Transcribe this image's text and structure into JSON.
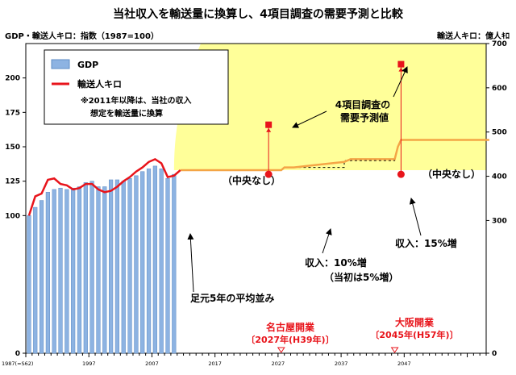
{
  "chart_data": {
    "type": "bar",
    "title": "当社収入を輸送量に換算し、4項目調査の需要予測と比較",
    "left_axis_label": "GDP・輸送人キロ：指数（1987=100）",
    "right_axis_label": "輸送人キロ：億人ｷﾛ",
    "y_left": {
      "range": [
        0,
        225
      ],
      "ticks": [
        "0",
        "100",
        "125",
        "150",
        "175",
        "200"
      ]
    },
    "y_right": {
      "range": [
        0,
        700
      ],
      "ticks": [
        "0",
        "300",
        "400",
        "500",
        "600",
        "700"
      ]
    },
    "x": {
      "range": [
        1987,
        2060
      ],
      "tick_labels": [
        {
          "year": 1987,
          "label": "1987(=S62)"
        },
        {
          "year": 1997,
          "label": "1997"
        },
        {
          "year": 2007,
          "label": "2007"
        },
        {
          "year": 2017,
          "label": "2017"
        },
        {
          "year": 2027,
          "label": "2027"
        },
        {
          "year": 2037,
          "label": "2037"
        },
        {
          "year": 2047,
          "label": "2047"
        }
      ]
    },
    "legend": {
      "position": "top-left",
      "entries": [
        {
          "name": "GDP",
          "color": "#8db3e2",
          "kind": "bar"
        },
        {
          "name": "輸送人キロ",
          "color": "#e8141b",
          "kind": "line"
        }
      ],
      "note_line1": "※2011年以降は、当社の収入",
      "note_line2": "想定を輸送量に換算"
    },
    "gdp_series": {
      "name": "GDP",
      "years": [
        1987,
        1988,
        1989,
        1990,
        1991,
        1992,
        1993,
        1994,
        1995,
        1996,
        1997,
        1998,
        1999,
        2000,
        2001,
        2002,
        2003,
        2004,
        2005,
        2006,
        2007,
        2008,
        2009,
        2010
      ],
      "values": [
        100,
        106,
        111,
        117,
        119,
        120,
        119,
        120,
        121,
        124,
        125,
        121,
        121,
        126,
        126,
        125,
        127,
        129,
        132,
        134,
        136,
        134,
        127,
        130
      ]
    },
    "traffic_series": {
      "name": "輸送人キロ",
      "points": [
        [
          1987,
          100
        ],
        [
          1988,
          114
        ],
        [
          1989,
          116
        ],
        [
          1990,
          126
        ],
        [
          1991,
          127
        ],
        [
          1992,
          123
        ],
        [
          1993,
          122
        ],
        [
          1994,
          119
        ],
        [
          1995,
          120
        ],
        [
          1996,
          123
        ],
        [
          1997,
          123
        ],
        [
          1998,
          119
        ],
        [
          1999,
          117
        ],
        [
          2000,
          118
        ],
        [
          2001,
          121
        ],
        [
          2002,
          125
        ],
        [
          2003,
          128
        ],
        [
          2004,
          132
        ],
        [
          2005,
          135
        ],
        [
          2006,
          139
        ],
        [
          2007,
          141
        ],
        [
          2008,
          138
        ],
        [
          2009,
          128
        ],
        [
          2010,
          129
        ],
        [
          2011,
          133
        ]
      ]
    },
    "forecast_line": {
      "color": "#f4a546",
      "points": [
        [
          2011,
          133
        ],
        [
          2027,
          133
        ],
        [
          2027.5,
          135
        ],
        [
          2029,
          135
        ],
        [
          2037,
          139
        ],
        [
          2038,
          141
        ],
        [
          2045,
          141
        ],
        [
          2045.5,
          150
        ],
        [
          2046,
          155
        ],
        [
          2060,
          155
        ]
      ]
    },
    "dashed_steps": {
      "points": [
        [
          2029,
          135
        ],
        [
          2037,
          135
        ],
        [
          2037,
          140
        ],
        [
          2045,
          140
        ],
        [
          2045,
          141
        ]
      ]
    },
    "forecast_markers": [
      {
        "year": 2025,
        "low": 130,
        "high": 166,
        "top_arrow": 166,
        "dot": 130
      },
      {
        "year": 2046,
        "low": 130,
        "high": 210,
        "top_arrow": 210,
        "dot": 130
      }
    ],
    "annotations": {
      "survey": "4項目調査の\n需要予測値",
      "no_central_1": "（中央なし）",
      "no_central_2": "（中央なし）",
      "income_15": "収入：15%増",
      "income_10": "収入：10%増",
      "income_10_sub": "（当初は5%増）",
      "avg5": "足元5年の平均並み",
      "nagoya_title": "名古屋開業",
      "nagoya_year": "〔2027年(H39年)〕",
      "osaka_title": "大阪開業",
      "osaka_year": "〔2045年(H57年)〕"
    },
    "colors": {
      "bar": "#8db3e2",
      "bar_stroke": "#5f8cc4",
      "line": "#e8141b",
      "forecast": "#f4a546",
      "shade": "#ffff99",
      "accent": "#e8141b"
    },
    "grid": false
  }
}
